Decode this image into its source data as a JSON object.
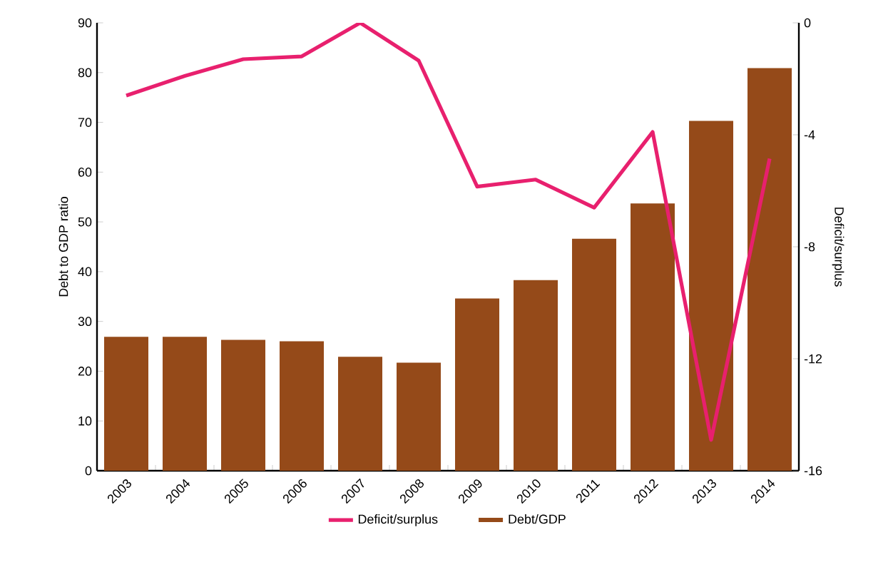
{
  "chart_data": {
    "type": "bar",
    "categories": [
      "2003",
      "2004",
      "2005",
      "2006",
      "2007",
      "2008",
      "2009",
      "2010",
      "2011",
      "2012",
      "2013",
      "2014"
    ],
    "ylabel": "Debt to GDP ratio",
    "y2label": "Deficit/surplus",
    "ylim": [
      0,
      90
    ],
    "yticks": [
      0,
      10,
      20,
      30,
      40,
      50,
      60,
      70,
      80,
      90
    ],
    "y2lim": [
      -16,
      0
    ],
    "y2ticks": [
      -16,
      -12,
      -8,
      -4,
      0
    ],
    "legend": "bottom",
    "grid": false,
    "series": [
      {
        "name": "Deficit/surplus",
        "type": "line",
        "axis": "y2",
        "color": "#e8206e",
        "values": [
          -2.6,
          -1.9,
          -1.3,
          -1.2,
          0,
          -1.35,
          -5.85,
          -5.6,
          -6.6,
          -3.9,
          -14.9,
          -4.85
        ]
      },
      {
        "name": "Debt/GDP",
        "color": "#954a19",
        "values": [
          26.9,
          26.9,
          26.3,
          26,
          22.9,
          21.7,
          34.6,
          38.3,
          46.6,
          53.7,
          70.3,
          80.9
        ]
      }
    ]
  }
}
